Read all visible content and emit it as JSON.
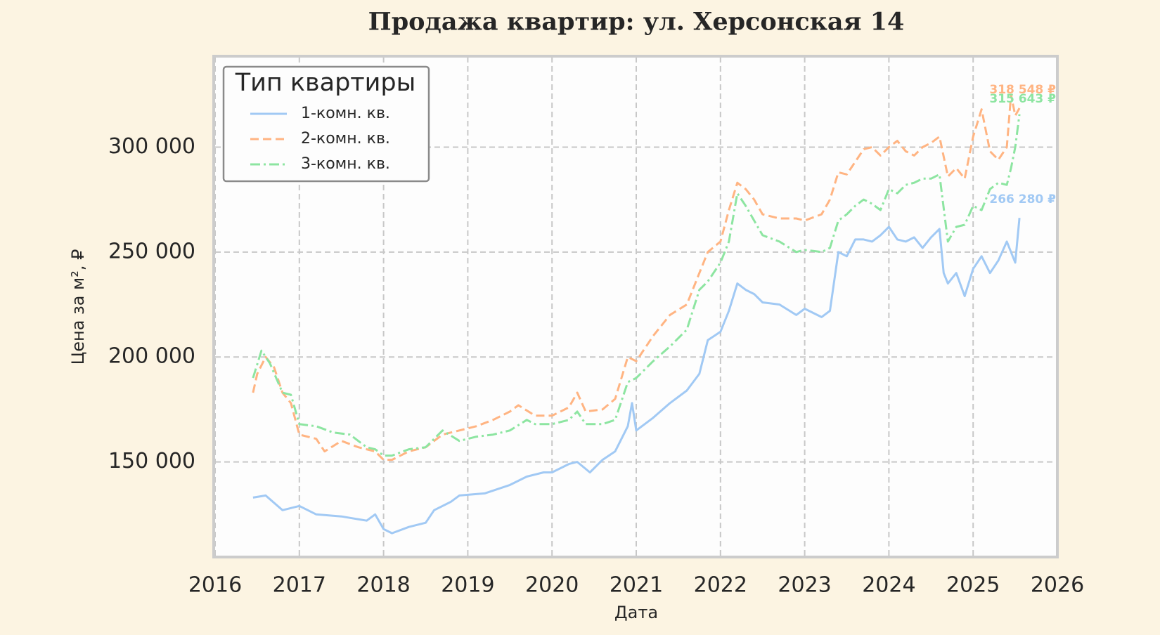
{
  "chart_data": {
    "type": "line",
    "title": "Продажа квартир: ул. Херсонская 14",
    "xlabel": "Дата",
    "ylabel": "Цена за м², ₽",
    "legend_title": "Тип квартиры",
    "legend": "upper left",
    "grid": true,
    "xlim": [
      2016,
      2026
    ],
    "xticks": [
      2016,
      2017,
      2018,
      2019,
      2020,
      2021,
      2022,
      2023,
      2024,
      2025,
      2026
    ],
    "ylim": [
      105000,
      343000
    ],
    "yticks": [
      {
        "value": 150000,
        "label": "150 000"
      },
      {
        "value": 200000,
        "label": "200 000"
      },
      {
        "value": 250000,
        "label": "250 000"
      },
      {
        "value": 300000,
        "label": "300 000"
      }
    ],
    "series": [
      {
        "name": "1-комн. кв.",
        "color": "#a1c9f4",
        "linestyle": "solid",
        "x": [
          2016.45,
          2016.6,
          2016.8,
          2017.0,
          2017.2,
          2017.5,
          2017.8,
          2017.9,
          2018.0,
          2018.1,
          2018.3,
          2018.5,
          2018.6,
          2018.8,
          2018.9,
          2019.2,
          2019.5,
          2019.7,
          2019.9,
          2020.0,
          2020.2,
          2020.3,
          2020.45,
          2020.6,
          2020.75,
          2020.9,
          2020.95,
          2021.0,
          2021.2,
          2021.4,
          2021.6,
          2021.75,
          2021.85,
          2022.0,
          2022.1,
          2022.2,
          2022.3,
          2022.4,
          2022.5,
          2022.7,
          2022.9,
          2023.0,
          2023.2,
          2023.3,
          2023.4,
          2023.5,
          2023.6,
          2023.7,
          2023.8,
          2023.9,
          2024.0,
          2024.1,
          2024.2,
          2024.3,
          2024.4,
          2024.5,
          2024.6,
          2024.65,
          2024.7,
          2024.8,
          2024.9,
          2025.0,
          2025.1,
          2025.2,
          2025.3,
          2025.4,
          2025.5,
          2025.55
        ],
        "values": [
          133000,
          134000,
          127000,
          129000,
          125000,
          124000,
          122000,
          125000,
          118000,
          116000,
          119000,
          121000,
          127000,
          131000,
          134000,
          135000,
          139000,
          143000,
          145000,
          145000,
          149000,
          150000,
          145000,
          151000,
          155000,
          167000,
          178000,
          165000,
          171000,
          178000,
          184000,
          192000,
          208000,
          212000,
          222000,
          235000,
          232000,
          230000,
          226000,
          225000,
          220000,
          223000,
          219000,
          222000,
          250000,
          248000,
          256000,
          256000,
          255000,
          258000,
          262000,
          256000,
          255000,
          257000,
          252000,
          257000,
          261000,
          240000,
          235000,
          240000,
          229000,
          242000,
          248000,
          240000,
          246000,
          255000,
          245000,
          266280
        ],
        "end_label": {
          "value": 266280,
          "label": "266 280 ₽"
        }
      },
      {
        "name": "2-комн. кв.",
        "color": "#ffb482",
        "linestyle": "dashed",
        "x": [
          2016.45,
          2016.5,
          2016.6,
          2016.7,
          2016.8,
          2016.9,
          2017.0,
          2017.2,
          2017.3,
          2017.5,
          2017.7,
          2017.9,
          2018.0,
          2018.1,
          2018.3,
          2018.5,
          2018.7,
          2018.9,
          2019.1,
          2019.3,
          2019.5,
          2019.6,
          2019.8,
          2020.0,
          2020.2,
          2020.3,
          2020.4,
          2020.6,
          2020.75,
          2020.9,
          2021.0,
          2021.2,
          2021.4,
          2021.6,
          2021.75,
          2021.85,
          2022.0,
          2022.1,
          2022.2,
          2022.3,
          2022.4,
          2022.5,
          2022.7,
          2022.9,
          2023.0,
          2023.2,
          2023.3,
          2023.4,
          2023.5,
          2023.6,
          2023.7,
          2023.8,
          2023.9,
          2024.0,
          2024.1,
          2024.2,
          2024.3,
          2024.4,
          2024.5,
          2024.6,
          2024.7,
          2024.8,
          2024.9,
          2025.0,
          2025.1,
          2025.2,
          2025.3,
          2025.4,
          2025.45,
          2025.5,
          2025.55
        ],
        "values": [
          183000,
          192000,
          200000,
          195000,
          183000,
          178000,
          163000,
          161000,
          155000,
          160000,
          157000,
          155000,
          151000,
          151000,
          155000,
          157000,
          163000,
          165000,
          167000,
          170000,
          174000,
          177000,
          172000,
          172000,
          176000,
          183000,
          174000,
          175000,
          180000,
          200000,
          198000,
          210000,
          220000,
          225000,
          240000,
          250000,
          255000,
          270000,
          283000,
          280000,
          275000,
          268000,
          266000,
          266000,
          265000,
          268000,
          275000,
          288000,
          287000,
          293000,
          299000,
          300000,
          296000,
          300000,
          303000,
          298000,
          296000,
          300000,
          302000,
          305000,
          286000,
          290000,
          285000,
          305000,
          318000,
          298000,
          294000,
          300000,
          325000,
          315000,
          318548
        ],
        "end_label": {
          "value": 318548,
          "label": "318 548 ₽"
        }
      },
      {
        "name": "3-комн. кв.",
        "color": "#8de5a1",
        "linestyle": "dashdot",
        "x": [
          2016.45,
          2016.55,
          2016.65,
          2016.8,
          2016.9,
          2017.0,
          2017.2,
          2017.4,
          2017.6,
          2017.8,
          2017.9,
          2018.0,
          2018.1,
          2018.3,
          2018.5,
          2018.7,
          2018.9,
          2019.1,
          2019.3,
          2019.5,
          2019.7,
          2019.8,
          2020.0,
          2020.2,
          2020.3,
          2020.4,
          2020.6,
          2020.75,
          2020.9,
          2021.0,
          2021.2,
          2021.4,
          2021.6,
          2021.75,
          2021.85,
          2022.0,
          2022.1,
          2022.2,
          2022.3,
          2022.4,
          2022.5,
          2022.7,
          2022.9,
          2023.0,
          2023.2,
          2023.3,
          2023.4,
          2023.5,
          2023.6,
          2023.7,
          2023.8,
          2023.9,
          2024.0,
          2024.1,
          2024.2,
          2024.3,
          2024.4,
          2024.5,
          2024.6,
          2024.7,
          2024.8,
          2024.9,
          2025.0,
          2025.1,
          2025.2,
          2025.3,
          2025.4,
          2025.45,
          2025.5,
          2025.55
        ],
        "values": [
          190000,
          203000,
          197000,
          183000,
          182000,
          168000,
          167000,
          164000,
          163000,
          157000,
          156000,
          153000,
          153000,
          156000,
          157000,
          165000,
          160000,
          162000,
          163000,
          165000,
          170000,
          168000,
          168000,
          170000,
          174000,
          168000,
          168000,
          170000,
          188000,
          190000,
          198000,
          205000,
          213000,
          232000,
          236000,
          245000,
          255000,
          278000,
          272000,
          265000,
          258000,
          255000,
          250000,
          251000,
          250000,
          252000,
          265000,
          268000,
          272000,
          275000,
          273000,
          270000,
          280000,
          278000,
          282000,
          283000,
          285000,
          285000,
          287000,
          255000,
          262000,
          263000,
          272000,
          270000,
          280000,
          283000,
          282000,
          290000,
          300000,
          315643
        ],
        "end_label": {
          "value": 315643,
          "label": "315 643 ₽"
        }
      }
    ]
  }
}
